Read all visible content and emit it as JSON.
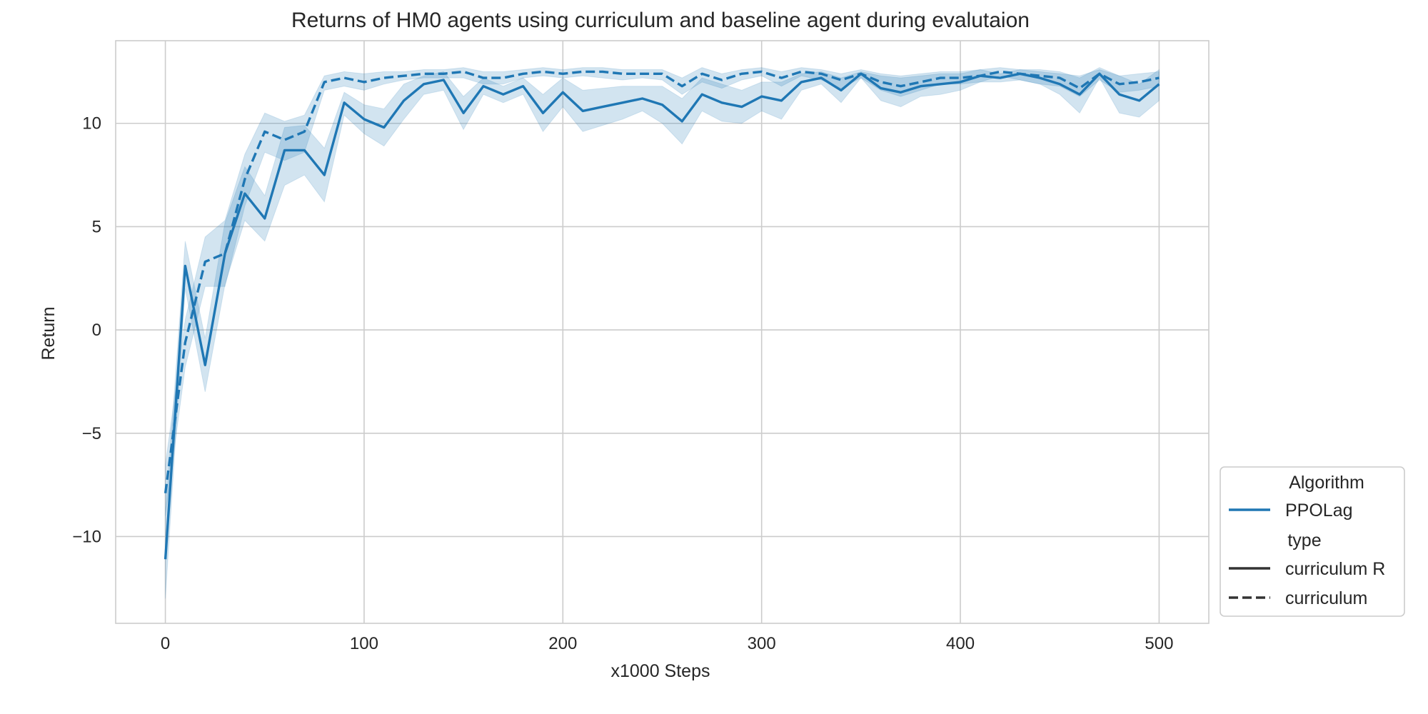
{
  "chart_data": {
    "type": "line",
    "title": "Returns of HM0 agents using curriculum and baseline agent during evalutaion",
    "xlabel": "x1000 Steps",
    "ylabel": "Return",
    "xlim": [
      -25,
      525
    ],
    "ylim": [
      -14.2,
      14.0
    ],
    "xticks": [
      0,
      100,
      200,
      300,
      400,
      500
    ],
    "xtick_labels": [
      "0",
      "100",
      "200",
      "300",
      "400",
      "500"
    ],
    "yticks": [
      -10,
      -5,
      0,
      5,
      10
    ],
    "ytick_labels": [
      "−10",
      "−5",
      "0",
      "5",
      "10"
    ],
    "grid": true,
    "colors": {
      "series": "#1f77b4",
      "band": "#1f77b4",
      "grid": "#cccccc",
      "text": "#262626"
    },
    "legend": {
      "placement": "lower-right-outside",
      "entries": [
        {
          "label": "Algorithm",
          "kind": "header"
        },
        {
          "label": "PPOLag",
          "kind": "line",
          "color": "#1f77b4",
          "dash": "solid"
        },
        {
          "label": "type",
          "kind": "header"
        },
        {
          "label": "curriculum R",
          "kind": "line",
          "color": "#333333",
          "dash": "solid"
        },
        {
          "label": "curriculum",
          "kind": "line",
          "color": "#333333",
          "dash": "dashed"
        }
      ]
    },
    "x": [
      0,
      10,
      20,
      30,
      40,
      50,
      60,
      70,
      80,
      90,
      100,
      110,
      120,
      130,
      140,
      150,
      160,
      170,
      180,
      190,
      200,
      210,
      220,
      230,
      240,
      250,
      260,
      270,
      280,
      290,
      300,
      310,
      320,
      330,
      340,
      350,
      360,
      370,
      380,
      390,
      400,
      410,
      420,
      430,
      440,
      450,
      460,
      470,
      480,
      490,
      500
    ],
    "series": [
      {
        "algorithm": "PPOLag",
        "type": "curriculum R",
        "dash": "solid",
        "values": [
          -11.1,
          3.1,
          -1.7,
          3.7,
          6.6,
          5.4,
          8.7,
          8.7,
          7.5,
          11.0,
          10.2,
          9.8,
          11.1,
          11.9,
          12.1,
          10.5,
          11.8,
          11.4,
          11.8,
          10.5,
          11.5,
          10.6,
          10.8,
          11.0,
          11.2,
          10.9,
          10.1,
          11.4,
          11.0,
          10.8,
          11.3,
          11.1,
          12.0,
          12.2,
          11.6,
          12.4,
          11.7,
          11.5,
          11.8,
          11.9,
          12.0,
          12.3,
          12.2,
          12.4,
          12.2,
          11.9,
          11.4,
          12.4,
          11.4,
          11.1,
          11.9
        ],
        "lower": [
          -13.0,
          2.0,
          -3.0,
          2.2,
          5.3,
          4.3,
          7.0,
          7.5,
          6.2,
          10.4,
          9.5,
          8.9,
          10.2,
          11.4,
          11.6,
          9.7,
          11.4,
          11.0,
          11.4,
          9.6,
          10.8,
          9.6,
          9.9,
          10.2,
          10.6,
          10.0,
          9.0,
          10.6,
          10.1,
          10.0,
          10.6,
          10.2,
          11.6,
          11.9,
          11.0,
          12.2,
          11.1,
          10.8,
          11.3,
          11.4,
          11.6,
          12.0,
          12.0,
          12.1,
          11.9,
          11.4,
          10.5,
          12.2,
          10.5,
          10.3,
          11.1
        ],
        "upper": [
          -9.0,
          4.3,
          -0.4,
          5.2,
          7.9,
          6.5,
          9.8,
          9.9,
          8.8,
          11.5,
          10.9,
          10.7,
          11.9,
          12.3,
          12.5,
          11.3,
          12.2,
          11.8,
          12.2,
          11.4,
          12.2,
          11.6,
          11.7,
          11.8,
          11.8,
          11.8,
          11.2,
          12.2,
          11.9,
          11.6,
          12.0,
          12.0,
          12.4,
          12.5,
          12.2,
          12.5,
          12.3,
          12.2,
          12.3,
          12.4,
          12.4,
          12.6,
          12.4,
          12.6,
          12.5,
          12.4,
          12.3,
          12.6,
          12.3,
          11.9,
          12.6
        ]
      },
      {
        "algorithm": "PPOLag",
        "type": "curriculum",
        "dash": "dashed",
        "values": [
          -7.9,
          -0.6,
          3.3,
          3.7,
          7.3,
          9.6,
          9.2,
          9.6,
          12.0,
          12.2,
          12.0,
          12.2,
          12.3,
          12.4,
          12.4,
          12.5,
          12.2,
          12.2,
          12.4,
          12.5,
          12.4,
          12.5,
          12.5,
          12.4,
          12.4,
          12.4,
          11.8,
          12.4,
          12.1,
          12.4,
          12.5,
          12.2,
          12.5,
          12.4,
          12.1,
          12.4,
          12.0,
          11.8,
          12.0,
          12.2,
          12.2,
          12.3,
          12.5,
          12.4,
          12.3,
          12.2,
          11.7,
          12.4,
          11.9,
          12.0,
          12.2
        ],
        "lower": [
          -9.0,
          -1.8,
          2.1,
          2.1,
          6.0,
          8.6,
          8.2,
          8.6,
          11.6,
          11.8,
          11.6,
          11.9,
          12.1,
          12.2,
          12.2,
          12.2,
          11.9,
          11.9,
          12.2,
          12.3,
          12.2,
          12.3,
          12.2,
          12.1,
          12.2,
          12.1,
          11.4,
          12.0,
          11.7,
          12.1,
          12.3,
          11.8,
          12.3,
          12.1,
          11.7,
          12.2,
          11.6,
          11.3,
          11.6,
          11.9,
          11.9,
          12.0,
          12.3,
          12.1,
          11.9,
          11.8,
          11.3,
          12.1,
          11.5,
          11.6,
          11.8
        ],
        "upper": [
          -6.5,
          0.5,
          4.5,
          5.3,
          8.5,
          10.5,
          10.1,
          10.4,
          12.3,
          12.5,
          12.4,
          12.5,
          12.5,
          12.6,
          12.6,
          12.7,
          12.5,
          12.5,
          12.6,
          12.7,
          12.6,
          12.7,
          12.7,
          12.6,
          12.6,
          12.6,
          12.2,
          12.7,
          12.4,
          12.6,
          12.7,
          12.5,
          12.7,
          12.6,
          12.4,
          12.6,
          12.4,
          12.3,
          12.4,
          12.5,
          12.5,
          12.6,
          12.7,
          12.6,
          12.6,
          12.5,
          12.2,
          12.7,
          12.3,
          12.4,
          12.5
        ]
      }
    ]
  }
}
